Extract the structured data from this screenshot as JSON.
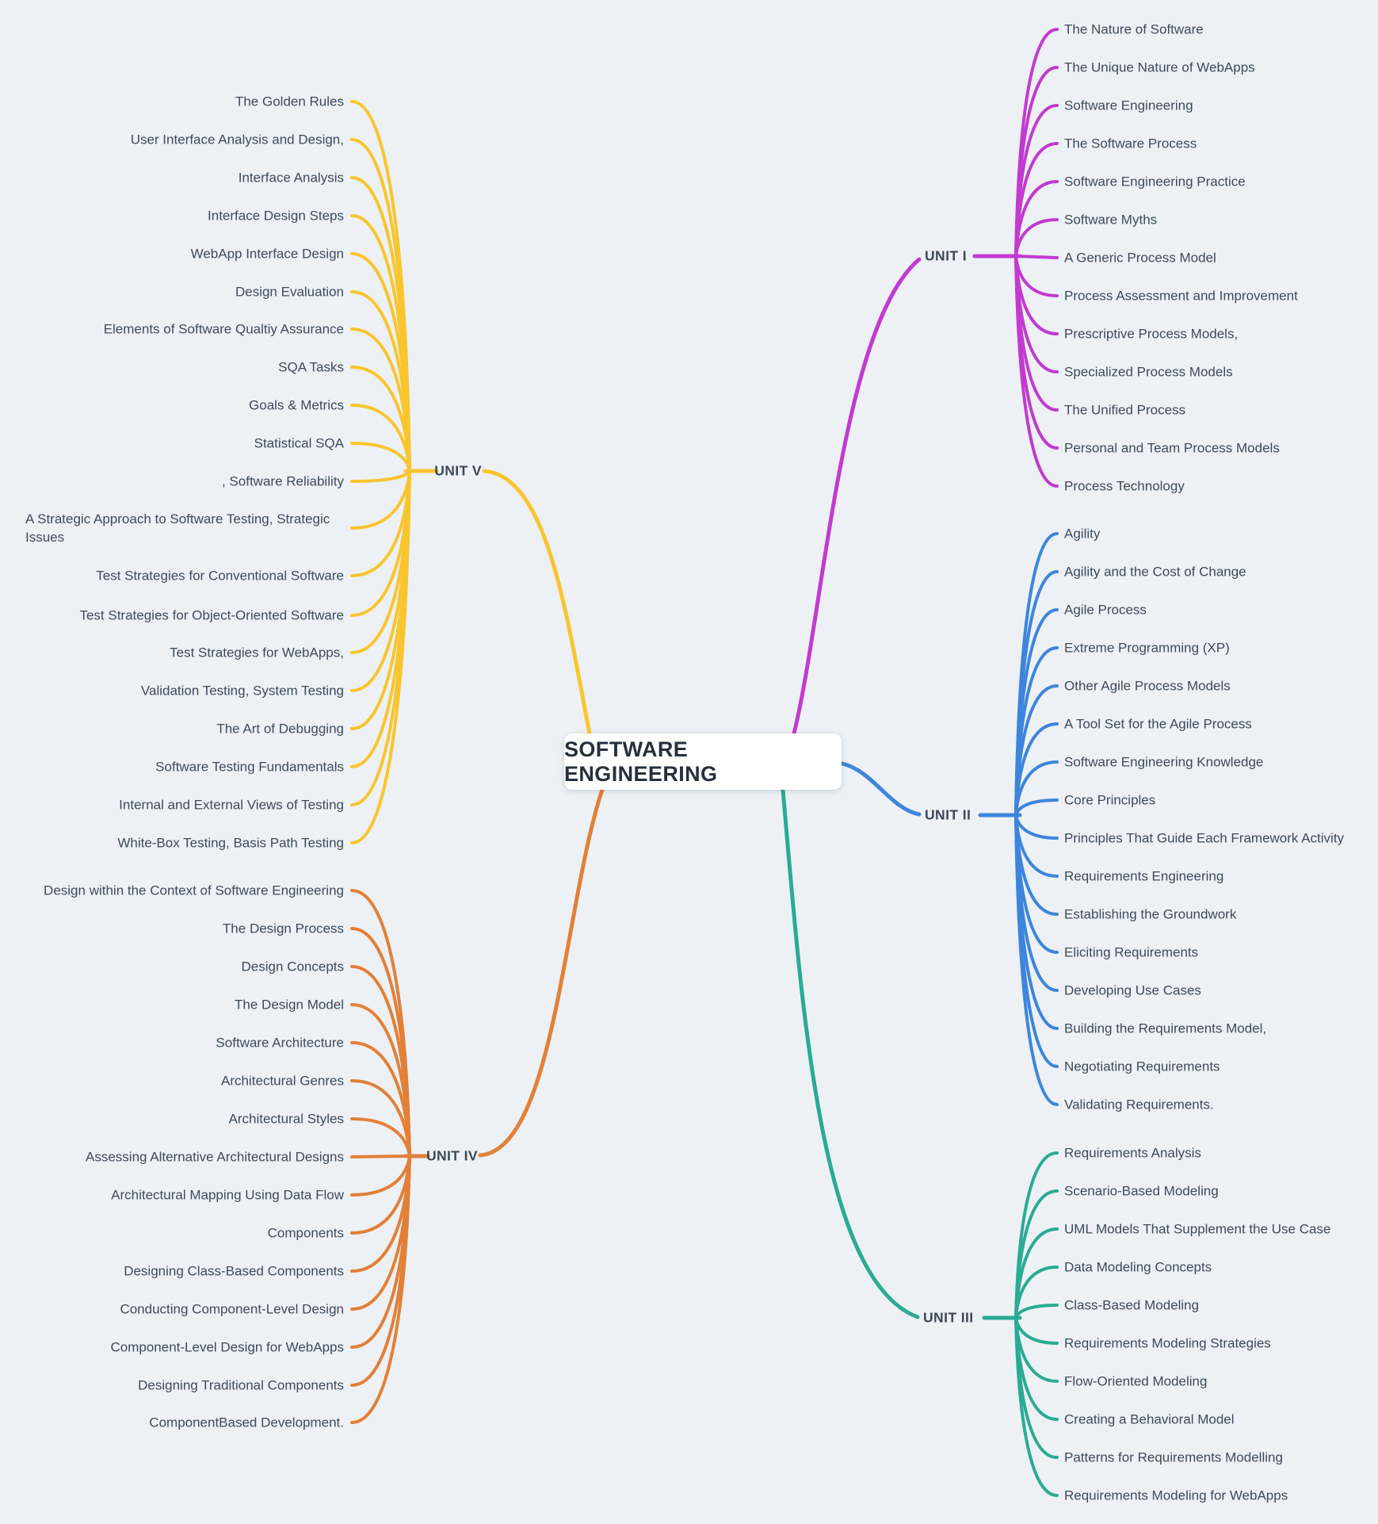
{
  "title": "SOFTWARE ENGINEERING",
  "background_color": "#edf1f5",
  "text_color": "#3d4a5c",
  "units": [
    {
      "label": "UNIT I",
      "color": "#c23ad0",
      "leaves": [
        "The Nature of Software",
        "The Unique Nature of WebApps",
        "Software Engineering",
        "The Software Process",
        "Software Engineering Practice",
        "Software Myths",
        "A Generic Process Model",
        "Process Assessment and Improvement",
        "Prescriptive Process Models,",
        "Specialized Process Models",
        "The Unified Process",
        "Personal and Team Process Models",
        "Process Technology"
      ]
    },
    {
      "label": "UNIT II",
      "color": "#3d85dc",
      "leaves": [
        "Agility",
        "Agility and the Cost of Change",
        "Agile Process",
        "Extreme Programming (XP)",
        "Other Agile Process Models",
        "A Tool Set for the Agile Process",
        "Software Engineering Knowledge",
        "Core Principles",
        "Principles That Guide Each Framework Activity",
        "Requirements Engineering",
        "Establishing the Groundwork",
        "Eliciting Requirements",
        "Developing Use Cases",
        "Building the Requirements Model,",
        "Negotiating Requirements",
        "Validating Requirements."
      ]
    },
    {
      "label": "UNIT III",
      "color": "#2aab93",
      "leaves": [
        "Requirements Analysis",
        "Scenario-Based Modeling",
        "UML Models That Supplement the Use Case",
        "Data Modeling Concepts",
        "Class-Based Modeling",
        "Requirements Modeling Strategies",
        "Flow-Oriented Modeling",
        "Creating a Behavioral Model",
        "Patterns for Requirements Modelling",
        "Requirements Modeling for WebApps"
      ]
    },
    {
      "label": "UNIT IV",
      "color": "#e28038",
      "leaves": [
        "Design within the Context of Software Engineering",
        "The Design Process",
        "Design Concepts",
        "The Design Model",
        "Software Architecture",
        "Architectural Genres",
        "Architectural Styles",
        "Assessing Alternative Architectural Designs",
        "Architectural Mapping Using Data Flow",
        "Components",
        "Designing Class-Based Components",
        "Conducting Component-Level Design",
        "Component-Level Design for WebApps",
        "Designing Traditional Components",
        "ComponentBased Development."
      ]
    },
    {
      "label": "UNIT V",
      "color": "#f9c52e",
      "leaves": [
        "The Golden Rules",
        "User Interface Analysis and Design,",
        "Interface Analysis",
        "Interface Design Steps",
        "WebApp Interface Design",
        "Design Evaluation",
        "Elements of Software Qualtiy Assurance",
        "SQA Tasks",
        "Goals & Metrics",
        "Statistical SQA",
        ", Software Reliability",
        "A Strategic Approach to Software Testing, Strategic\nIssues",
        "Test Strategies for Conventional Software",
        "Test Strategies for Object-Oriented Software",
        "Test Strategies for WebApps,",
        "Validation Testing, System Testing",
        "The Art of Debugging",
        "Software Testing Fundamentals",
        "Internal and External Views of Testing",
        "White-Box Testing, Basis Path Testing"
      ]
    }
  ]
}
